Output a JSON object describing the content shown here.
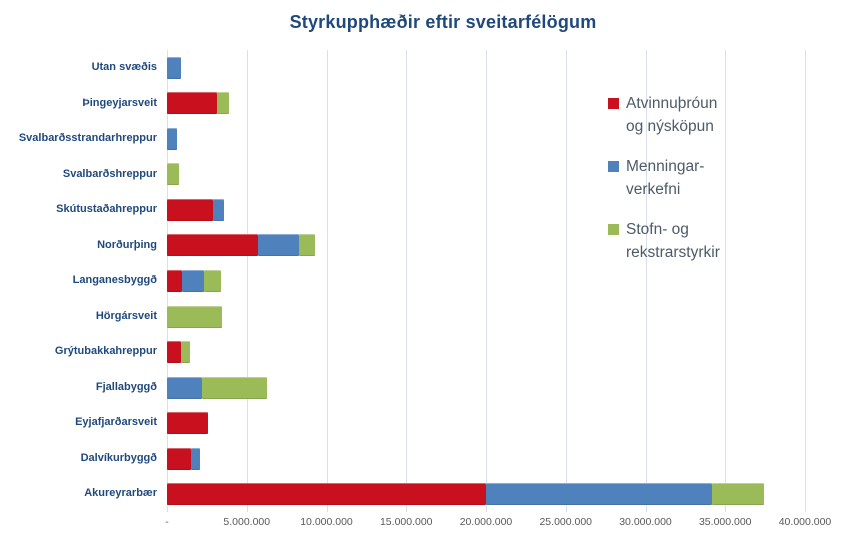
{
  "title": "Styrkupphæðir eftir sveitarfélögum",
  "colors": {
    "title_text": "#1F497D",
    "category_text": "#1F497D",
    "axis_text": "#595959",
    "legend_text": "#4D5A68",
    "gridline": "#D8E0EB",
    "series_red": "#C8101E",
    "series_blue": "#4F81BD",
    "series_green": "#9BBB59"
  },
  "legend": {
    "items": [
      {
        "label": "Atvinnuþróun og nýsköpun",
        "label_lines": "Atvinnuþróun\nog nýsköpun",
        "color": "#C8101E"
      },
      {
        "label": "Menningar-verkefni",
        "label_lines": "Menningar-\nverkefni",
        "color": "#4F81BD"
      },
      {
        "label": "Stofn- og rekstrarstyrkir",
        "label_lines": "Stofn- og\nrekstrarstyrkir",
        "color": "#9BBB59"
      }
    ]
  },
  "chart_data": {
    "type": "bar",
    "orientation": "horizontal",
    "stacked": true,
    "title": "Styrkupphæðir eftir sveitarfélögum",
    "xlabel": "",
    "ylabel": "",
    "grid": true,
    "legend_position": "right",
    "xlim": [
      0,
      40000000
    ],
    "x_ticks": [
      0,
      5000000,
      10000000,
      15000000,
      20000000,
      25000000,
      30000000,
      35000000,
      40000000
    ],
    "x_tick_labels": [
      "-",
      "5.000.000",
      "10.000.000",
      "15.000.000",
      "20.000.000",
      "25.000.000",
      "30.000.000",
      "35.000.000",
      "40.000.000"
    ],
    "categories": [
      "Utan svæðis",
      "Þingeyjarsveit",
      "Svalbarðsstrandarhreppur",
      "Svalbarðshreppur",
      "Skútustaðahreppur",
      "Norðurþing",
      "Langanesbyggð",
      "Hörgársveit",
      "Grýtubakkahreppur",
      "Fjallabyggð",
      "Eyjafjarðarsveit",
      "Dalvíkurbyggð",
      "Akureyrarbær"
    ],
    "series": [
      {
        "name": "Atvinnuþróun og nýsköpun",
        "color": "#C8101E",
        "values": [
          0,
          3150000,
          0,
          0,
          2900000,
          5700000,
          950000,
          0,
          900000,
          0,
          2600000,
          1500000,
          20000000
        ]
      },
      {
        "name": "Menningar-verkefni",
        "color": "#4F81BD",
        "values": [
          900000,
          0,
          600000,
          0,
          700000,
          2600000,
          1350000,
          0,
          0,
          2200000,
          0,
          550000,
          14200000
        ]
      },
      {
        "name": "Stofn- og rekstrarstyrkir",
        "color": "#9BBB59",
        "values": [
          0,
          750000,
          0,
          750000,
          0,
          1000000,
          1100000,
          3450000,
          550000,
          4100000,
          0,
          0,
          3200000
        ]
      }
    ]
  }
}
